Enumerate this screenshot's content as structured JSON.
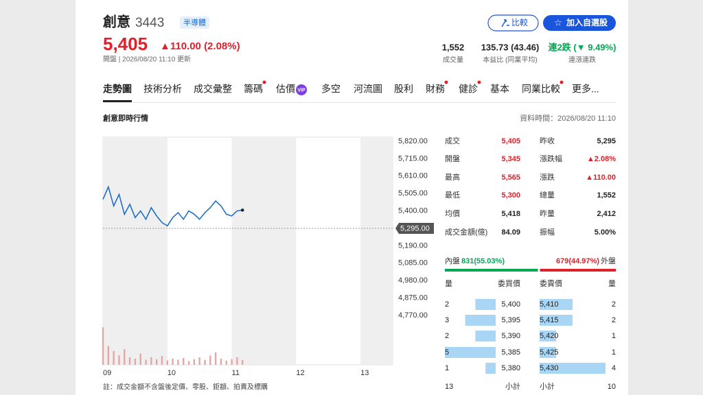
{
  "header": {
    "name": "創意",
    "code": "3443",
    "tag": "半導體",
    "price": "5,405",
    "change": "▲110.00 (2.08%)",
    "sub": "開盤 | 2026/08/20 11:10 更新"
  },
  "buttons": {
    "compare": "比較",
    "watchlist_icon": "☆",
    "watchlist": "加入自選股"
  },
  "stats": [
    {
      "value": "1,552",
      "label": "成交量",
      "color": "#222222"
    },
    {
      "value": "135.73 (43.46)",
      "label": "本益比 (同業平均)",
      "color": "#222222"
    },
    {
      "value": "連2跌 (▼ 9.49%)",
      "label": "連漲連跌",
      "color": "#00a854"
    }
  ],
  "tabs": [
    {
      "label": "走勢圖",
      "selected": true
    },
    {
      "label": "技術分析"
    },
    {
      "label": "成交彙整"
    },
    {
      "label": "籌碼",
      "dot": true
    },
    {
      "label": "估價",
      "badge": "VIP"
    },
    {
      "label": "多空"
    },
    {
      "label": "河流圖"
    },
    {
      "label": "股利"
    },
    {
      "label": "財務",
      "dot": true
    },
    {
      "label": "健診",
      "dot": true
    },
    {
      "label": "基本"
    },
    {
      "label": "同業比較",
      "dot": true
    },
    {
      "label": "更多..."
    }
  ],
  "section": {
    "title": "創意即時行情",
    "time": "資料時間：2026/08/20 11:10"
  },
  "chart_data": {
    "type": "line",
    "x": [
      0,
      5,
      10,
      15,
      20,
      25,
      30,
      35,
      40,
      45,
      50,
      55,
      60,
      65,
      70,
      75,
      80,
      85,
      90,
      95,
      100,
      105,
      110,
      115,
      120,
      125,
      130
    ],
    "xlim": [
      0,
      270
    ],
    "xticks": [
      {
        "value": 0,
        "label": "09"
      },
      {
        "value": 60,
        "label": "10"
      },
      {
        "value": 120,
        "label": "11"
      },
      {
        "value": 180,
        "label": "12"
      },
      {
        "value": 240,
        "label": "13"
      }
    ],
    "ylim": [
      4770,
      5820
    ],
    "yticks": [
      {
        "value": 5820,
        "label": "5,820.00"
      },
      {
        "value": 5715,
        "label": "5,715.00"
      },
      {
        "value": 5610,
        "label": "5,610.00"
      },
      {
        "value": 5505,
        "label": "5,505.00"
      },
      {
        "value": 5400,
        "label": "5,400.00"
      },
      {
        "value": 5295,
        "label": "5,295.00"
      },
      {
        "value": 5190,
        "label": "5,190.00"
      },
      {
        "value": 5085,
        "label": "5,085.00"
      },
      {
        "value": 4980,
        "label": "4,980.00"
      },
      {
        "value": 4875,
        "label": "4,875.00"
      },
      {
        "value": 4770,
        "label": "4,770.00"
      }
    ],
    "reference_line": 5295,
    "series": [
      {
        "color": "#1f6fc5",
        "values": [
          5470,
          5545,
          5430,
          5500,
          5380,
          5440,
          5360,
          5400,
          5350,
          5420,
          5370,
          5330,
          5310,
          5360,
          5390,
          5350,
          5400,
          5380,
          5350,
          5390,
          5420,
          5460,
          5430,
          5380,
          5370,
          5400,
          5405
        ]
      }
    ],
    "volume": {
      "color": "#e3a7a7",
      "ylim": [
        0,
        70
      ],
      "values": [
        60,
        30,
        22,
        15,
        25,
        12,
        10,
        18,
        8,
        12,
        9,
        14,
        7,
        10,
        8,
        11,
        6,
        9,
        12,
        8,
        15,
        20,
        10,
        7,
        9,
        12,
        8
      ]
    }
  },
  "quote": [
    [
      {
        "text": "成交"
      },
      {
        "text": "5,405",
        "color": "#e0202a"
      },
      {
        "text": "昨收"
      },
      {
        "text": "5,295",
        "color": "#222222"
      }
    ],
    [
      {
        "text": "開盤"
      },
      {
        "text": "5,345",
        "color": "#e0202a"
      },
      {
        "text": "漲跌幅"
      },
      {
        "text": "▲2.08%",
        "color": "#e0202a"
      }
    ],
    [
      {
        "text": "最高"
      },
      {
        "text": "5,565",
        "color": "#e0202a"
      },
      {
        "text": "漲跌"
      },
      {
        "text": "▲110.00",
        "color": "#e0202a"
      }
    ],
    [
      {
        "text": "最低"
      },
      {
        "text": "5,300",
        "color": "#e0202a"
      },
      {
        "text": "總量"
      },
      {
        "text": "1,552",
        "color": "#222222"
      }
    ],
    [
      {
        "text": "均價"
      },
      {
        "text": "5,418",
        "color": "#222222"
      },
      {
        "text": "昨量"
      },
      {
        "text": "2,412",
        "color": "#222222"
      }
    ],
    [
      {
        "text": "成交金額(億)"
      },
      {
        "text": "84.09",
        "color": "#222222"
      },
      {
        "text": "振幅"
      },
      {
        "text": "5.00%",
        "color": "#222222"
      }
    ]
  ],
  "inout": {
    "in": {
      "label": "內盤",
      "text": "831(55.03%)",
      "share": 55.03,
      "color": "#00a854"
    },
    "out": {
      "label": "外盤",
      "text": "679(44.97%)",
      "share": 44.97,
      "color": "#e0202a"
    }
  },
  "orderbook": {
    "headers": [
      "量",
      "委買價",
      "委賣價",
      "量"
    ],
    "bar_color": "#a9d6f5",
    "rows": [
      {
        "bid_vol": 2,
        "bid": "5,400",
        "ask": "5,410",
        "ask_vol": 2
      },
      {
        "bid_vol": 3,
        "bid": "5,395",
        "ask": "5,415",
        "ask_vol": 2
      },
      {
        "bid_vol": 2,
        "bid": "5,390",
        "ask": "5,420",
        "ask_vol": 1
      },
      {
        "bid_vol": 5,
        "bid": "5,385",
        "ask": "5,425",
        "ask_vol": 1
      },
      {
        "bid_vol": 1,
        "bid": "5,380",
        "ask": "5,430",
        "ask_vol": 4
      }
    ],
    "subtotal": {
      "bid_vol": 13,
      "bid_label": "小計",
      "ask_label": "小計",
      "ask_vol": 10
    }
  },
  "note": "註：成交金額不含盤後定價、零股、鉅額、拍賣及標購"
}
